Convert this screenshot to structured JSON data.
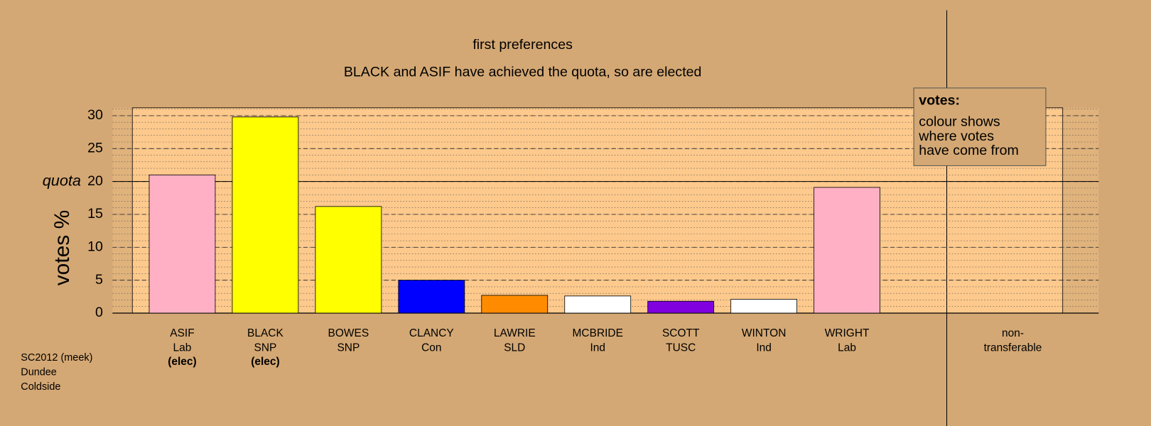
{
  "chart_data": {
    "type": "bar",
    "title": "first preferences",
    "subtitle": "BLACK and ASIF have achieved the quota, so are elected",
    "y_label": "votes %",
    "categories": [
      "ASIF",
      "BLACK",
      "BOWES",
      "CLANCY",
      "LAWRIE",
      "MCBRIDE",
      "SCOTT",
      "WINTON",
      "WRIGHT"
    ],
    "parties": [
      "Lab",
      "SNP",
      "SNP",
      "Con",
      "SLD",
      "Ind",
      "TUSC",
      "Ind",
      "Lab"
    ],
    "notes": [
      "(elec)",
      "(elec)",
      null,
      null,
      null,
      null,
      null,
      null,
      null
    ],
    "values": [
      21.0,
      29.8,
      16.2,
      5.0,
      2.7,
      2.6,
      1.8,
      2.1,
      19.1
    ],
    "colors": [
      "#ffb0c4",
      "#ffff00",
      "#ffff00",
      "#0000ff",
      "#ff8c00",
      "#ffffff",
      "#8000e0",
      "#ffffff",
      "#ffb0c4"
    ],
    "non_transferable_label": [
      "non-",
      "transferable"
    ],
    "ylim": [
      0,
      31.2
    ],
    "yticks": [
      0,
      5,
      10,
      15,
      20,
      25,
      30
    ],
    "minor_grid_step": 1,
    "quota": 20,
    "quota_label": "quota",
    "legend": {
      "title": "votes:",
      "lines": [
        "colour shows",
        "where votes",
        "have come from"
      ]
    },
    "footnote": [
      "SC2012 (meek)",
      "Dundee",
      "Coldside"
    ],
    "grid": true
  }
}
